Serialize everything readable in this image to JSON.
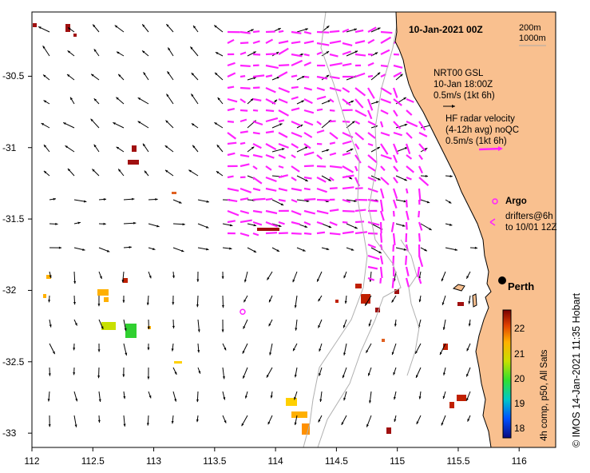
{
  "title": "10-Jan-2021 00Z",
  "legend": {
    "contours": [
      "200m",
      "1000m"
    ],
    "gsl_lines": [
      "NRT00 GSL",
      "10-Jan 18:00Z",
      "0.5m/s (1kt 6h)"
    ],
    "hf_lines": [
      "HF radar velocity",
      "(4-12h avg) noQC",
      "0.5m/s (1kt 6h)"
    ],
    "argo_label": "Argo",
    "drifter_lines": [
      "drifters@6h",
      "to 10/01 12Z"
    ]
  },
  "city": {
    "name": "Perth",
    "lon": 115.86,
    "lat": -31.95
  },
  "axes": {
    "x_ticks": [
      "112",
      "112.5",
      "113",
      "113.5",
      "114",
      "114.5",
      "115",
      "115.5",
      "116"
    ],
    "y_ticks": [
      "-30.5",
      "-31",
      "-31.5",
      "-32",
      "-32.5",
      "-33"
    ],
    "xlim": [
      112,
      116.3
    ],
    "ylim": [
      -33.1,
      -30.05
    ]
  },
  "colorbar": {
    "label": "4h comp, p50, All Sats",
    "ticks": [
      "22",
      "21",
      "20",
      "19",
      "18"
    ],
    "range": [
      17.8,
      22.8
    ]
  },
  "credit": "© IMOS 14-Jan-2021 11:35 Hobart",
  "argo_float": {
    "lon": 113.73,
    "lat": -32.15
  },
  "colors": {
    "land": "#f9c08f",
    "hf": "#ff22ff",
    "contour": "#aaaaaa",
    "gsl": "#000000"
  }
}
